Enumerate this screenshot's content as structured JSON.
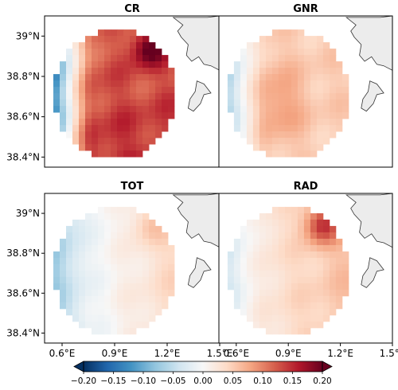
{
  "chart_data": {
    "type": "heatmap",
    "colormap": "RdBu_r (blue negative, red positive)",
    "crs": "lat-lon map panels",
    "xlim": [
      0.5,
      1.5
    ],
    "ylim": [
      38.35,
      39.1
    ],
    "xticks": [
      {
        "value": 0.6,
        "label": "0.6°E"
      },
      {
        "value": 0.9,
        "label": "0.9°E"
      },
      {
        "value": 1.2,
        "label": "1.2°E"
      },
      {
        "value": 1.5,
        "label": "1.5°E"
      }
    ],
    "yticks": [
      {
        "value": 39.0,
        "label": "39°N"
      },
      {
        "value": 38.8,
        "label": "38.8°N"
      },
      {
        "value": 38.6,
        "label": "38.6°N"
      },
      {
        "value": 38.4,
        "label": "38.4°N"
      }
    ],
    "land_color": "#ececec",
    "panels": [
      {
        "title": "CR",
        "mean_anomaly": 0.13,
        "notes": "strong positive everywhere, maximum ~0.2 in the north-east, slightly negative at far west edge"
      },
      {
        "title": "GNR",
        "mean_anomaly": 0.06,
        "notes": "moderate positive, stronger in west-centre"
      },
      {
        "title": "TOT",
        "mean_anomaly": 0.01,
        "notes": "weak; slightly negative in west, slightly positive in east"
      },
      {
        "title": "RAD",
        "mean_anomaly": 0.03,
        "notes": "weak positive, local maximum ~0.12 in the north-east"
      }
    ],
    "colorbar": {
      "vmin": -0.2,
      "vmax": 0.2,
      "ticks": [
        "−0.20",
        "−0.15",
        "−0.10",
        "−0.05",
        "0.00",
        "0.05",
        "0.10",
        "0.15",
        "0.20"
      ],
      "extend": "both",
      "orientation": "horizontal"
    }
  }
}
